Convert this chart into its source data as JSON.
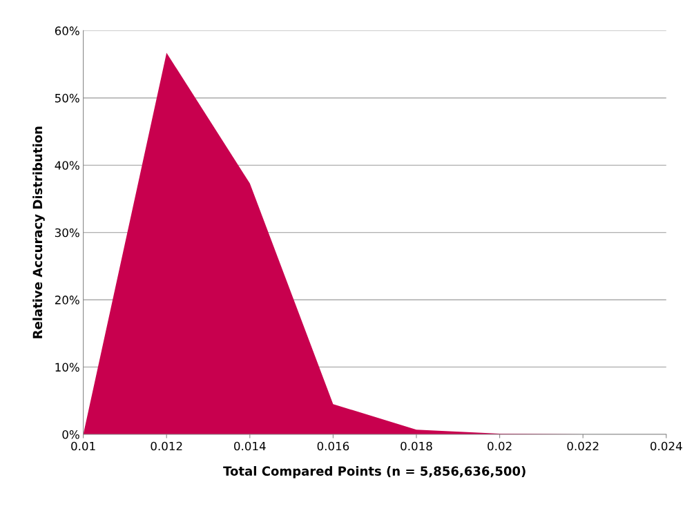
{
  "chart_data": {
    "type": "area",
    "xlabel": "Total Compared Points (n = 5,856,636,500)",
    "ylabel": "Relative Accuracy Distribution",
    "x": [
      0.01,
      0.012,
      0.014,
      0.016,
      0.018,
      0.02,
      0.022,
      0.024
    ],
    "series": [
      {
        "color": "#c8004e",
        "values": [
          0,
          56.7,
          37.3,
          4.5,
          0.7,
          0.1,
          0,
          0
        ]
      }
    ],
    "xlim": [
      0.01,
      0.024
    ],
    "xticks": [
      0.01,
      0.012,
      0.014,
      0.016,
      0.018,
      0.02,
      0.022,
      0.024
    ],
    "ylim": [
      0,
      60
    ],
    "yticks": [
      {
        "value": 0,
        "label": "0%"
      },
      {
        "value": 10,
        "label": "10%"
      },
      {
        "value": 20,
        "label": "20%"
      },
      {
        "value": 30,
        "label": "30%"
      },
      {
        "value": 40,
        "label": "40%"
      },
      {
        "value": 50,
        "label": "50%"
      },
      {
        "value": 60,
        "label": "60%"
      }
    ],
    "grid": "y",
    "legend": false
  }
}
